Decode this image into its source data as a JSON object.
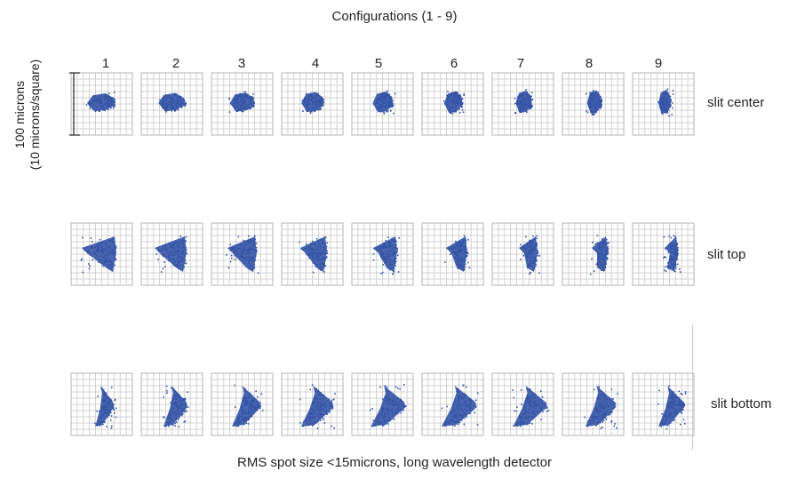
{
  "title": "Configurations (1 - 9)",
  "caption": "RMS spot size <15microns, long wavelength detector",
  "scale_label": {
    "line1": "100 microns",
    "line2": "(10 microns/square)"
  },
  "configurations": [
    "1",
    "2",
    "3",
    "4",
    "5",
    "6",
    "7",
    "8",
    "9"
  ],
  "rows": [
    {
      "label": "slit center"
    },
    {
      "label": "slit top"
    },
    {
      "label": "slit bottom"
    }
  ],
  "colors": {
    "spot": "#3554a6",
    "grid": "#c8c8c8",
    "border": "#b4b4b4"
  }
}
